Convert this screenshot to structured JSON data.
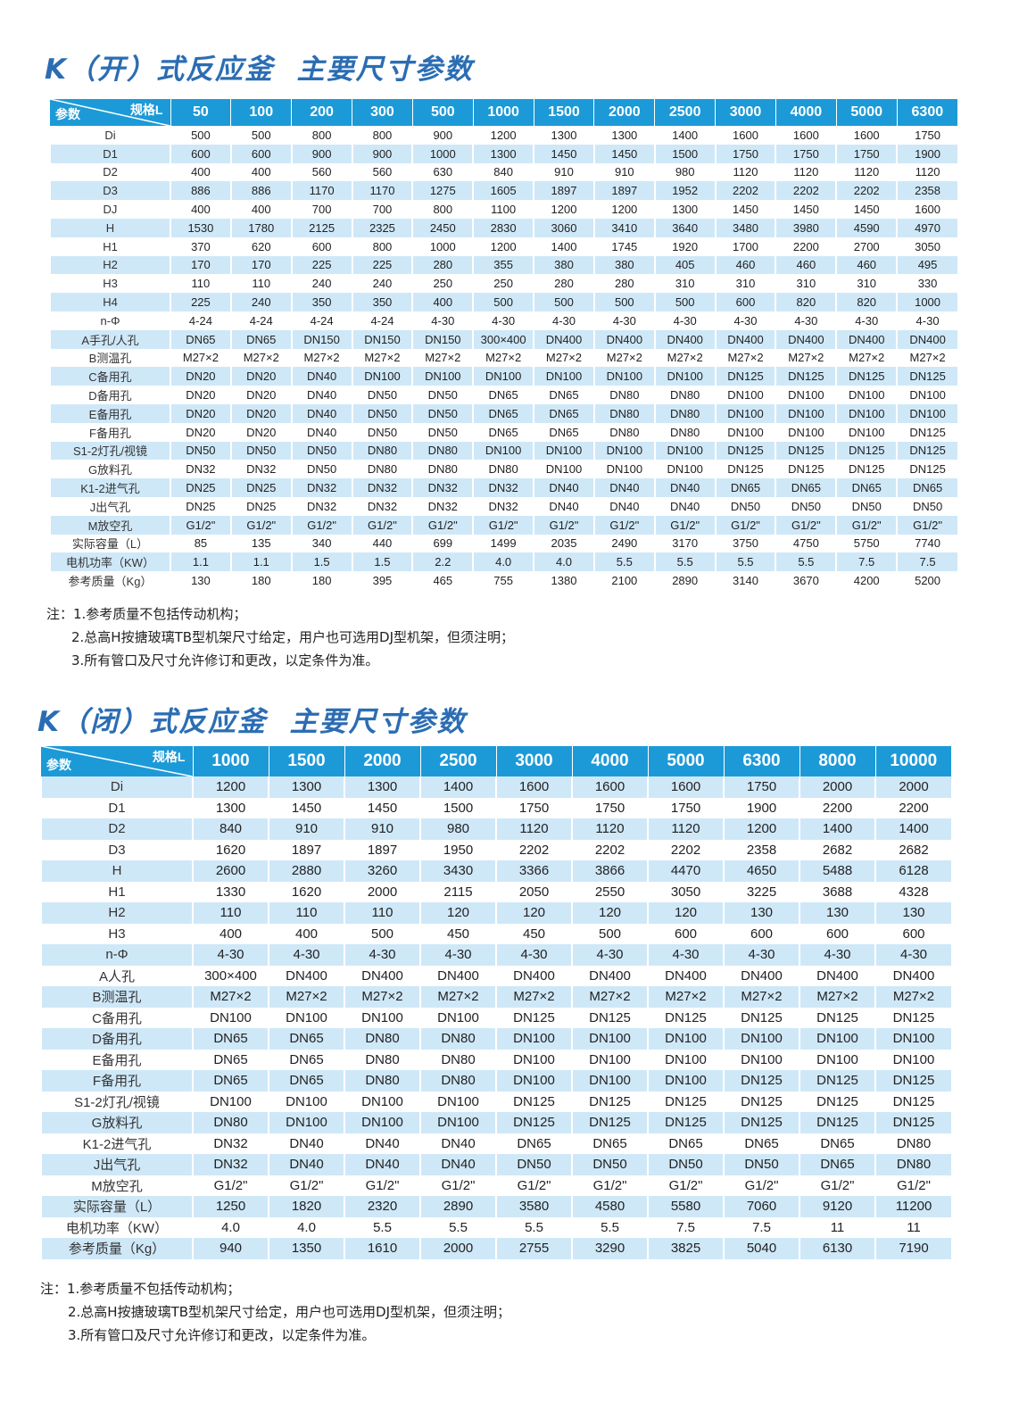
{
  "colors": {
    "title": "#2b6db3",
    "header": "#1c9ad8",
    "stripe": "#cfe8f8"
  },
  "section1": {
    "title": "K（开）式反应釜  主要尺寸参数",
    "corner": {
      "param": "参数",
      "spec": "规格L"
    },
    "columns": [
      "50",
      "100",
      "200",
      "300",
      "500",
      "1000",
      "1500",
      "2000",
      "2500",
      "3000",
      "4000",
      "5000",
      "6300"
    ],
    "rows": [
      [
        "Di",
        "500",
        "500",
        "800",
        "800",
        "900",
        "1200",
        "1300",
        "1300",
        "1400",
        "1600",
        "1600",
        "1600",
        "1750"
      ],
      [
        "D1",
        "600",
        "600",
        "900",
        "900",
        "1000",
        "1300",
        "1450",
        "1450",
        "1500",
        "1750",
        "1750",
        "1750",
        "1900"
      ],
      [
        "D2",
        "400",
        "400",
        "560",
        "560",
        "630",
        "840",
        "910",
        "910",
        "980",
        "1120",
        "1120",
        "1120",
        "1120"
      ],
      [
        "D3",
        "886",
        "886",
        "1170",
        "1170",
        "1275",
        "1605",
        "1897",
        "1897",
        "1952",
        "2202",
        "2202",
        "2202",
        "2358"
      ],
      [
        "DJ",
        "400",
        "400",
        "700",
        "700",
        "800",
        "1100",
        "1200",
        "1200",
        "1300",
        "1450",
        "1450",
        "1450",
        "1600"
      ],
      [
        "H",
        "1530",
        "1780",
        "2125",
        "2325",
        "2450",
        "2830",
        "3060",
        "3410",
        "3640",
        "3480",
        "3980",
        "4590",
        "4970"
      ],
      [
        "H1",
        "370",
        "620",
        "600",
        "800",
        "1000",
        "1200",
        "1400",
        "1745",
        "1920",
        "1700",
        "2200",
        "2700",
        "3050"
      ],
      [
        "H2",
        "170",
        "170",
        "225",
        "225",
        "280",
        "355",
        "380",
        "380",
        "405",
        "460",
        "460",
        "460",
        "495"
      ],
      [
        "H3",
        "110",
        "110",
        "240",
        "240",
        "250",
        "250",
        "280",
        "280",
        "310",
        "310",
        "310",
        "310",
        "330"
      ],
      [
        "H4",
        "225",
        "240",
        "350",
        "350",
        "400",
        "500",
        "500",
        "500",
        "500",
        "600",
        "820",
        "820",
        "1000"
      ],
      [
        "n-Φ",
        "4-24",
        "4-24",
        "4-24",
        "4-24",
        "4-30",
        "4-30",
        "4-30",
        "4-30",
        "4-30",
        "4-30",
        "4-30",
        "4-30",
        "4-30"
      ],
      [
        "A手孔/人孔",
        "DN65",
        "DN65",
        "DN150",
        "DN150",
        "DN150",
        "300×400",
        "DN400",
        "DN400",
        "DN400",
        "DN400",
        "DN400",
        "DN400",
        "DN400"
      ],
      [
        "B测温孔",
        "M27×2",
        "M27×2",
        "M27×2",
        "M27×2",
        "M27×2",
        "M27×2",
        "M27×2",
        "M27×2",
        "M27×2",
        "M27×2",
        "M27×2",
        "M27×2",
        "M27×2"
      ],
      [
        "C备用孔",
        "DN20",
        "DN20",
        "DN40",
        "DN100",
        "DN100",
        "DN100",
        "DN100",
        "DN100",
        "DN100",
        "DN125",
        "DN125",
        "DN125",
        "DN125"
      ],
      [
        "D备用孔",
        "DN20",
        "DN20",
        "DN40",
        "DN50",
        "DN50",
        "DN65",
        "DN65",
        "DN80",
        "DN80",
        "DN100",
        "DN100",
        "DN100",
        "DN100"
      ],
      [
        "E备用孔",
        "DN20",
        "DN20",
        "DN40",
        "DN50",
        "DN50",
        "DN65",
        "DN65",
        "DN80",
        "DN80",
        "DN100",
        "DN100",
        "DN100",
        "DN100"
      ],
      [
        "F备用孔",
        "DN20",
        "DN20",
        "DN40",
        "DN50",
        "DN50",
        "DN65",
        "DN65",
        "DN80",
        "DN80",
        "DN100",
        "DN100",
        "DN100",
        "DN125"
      ],
      [
        "S1-2灯孔/视镜",
        "DN50",
        "DN50",
        "DN50",
        "DN80",
        "DN80",
        "DN100",
        "DN100",
        "DN100",
        "DN100",
        "DN125",
        "DN125",
        "DN125",
        "DN125"
      ],
      [
        "G放料孔",
        "DN32",
        "DN32",
        "DN50",
        "DN80",
        "DN80",
        "DN80",
        "DN100",
        "DN100",
        "DN100",
        "DN125",
        "DN125",
        "DN125",
        "DN125"
      ],
      [
        "K1-2进气孔",
        "DN25",
        "DN25",
        "DN32",
        "DN32",
        "DN32",
        "DN32",
        "DN40",
        "DN40",
        "DN40",
        "DN65",
        "DN65",
        "DN65",
        "DN65"
      ],
      [
        "J出气孔",
        "DN25",
        "DN25",
        "DN32",
        "DN32",
        "DN32",
        "DN32",
        "DN40",
        "DN40",
        "DN40",
        "DN50",
        "DN50",
        "DN50",
        "DN50"
      ],
      [
        "M放空孔",
        "G1/2\"",
        "G1/2\"",
        "G1/2\"",
        "G1/2\"",
        "G1/2\"",
        "G1/2\"",
        "G1/2\"",
        "G1/2\"",
        "G1/2\"",
        "G1/2\"",
        "G1/2\"",
        "G1/2\"",
        "G1/2\""
      ],
      [
        "实际容量（L）",
        "85",
        "135",
        "340",
        "440",
        "699",
        "1499",
        "2035",
        "2490",
        "3170",
        "3750",
        "4750",
        "5750",
        "7740"
      ],
      [
        "电机功率（KW）",
        "1.1",
        "1.1",
        "1.5",
        "1.5",
        "2.2",
        "4.0",
        "4.0",
        "5.5",
        "5.5",
        "5.5",
        "5.5",
        "7.5",
        "7.5"
      ],
      [
        "参考质量（Kg）",
        "130",
        "180",
        "180",
        "395",
        "465",
        "755",
        "1380",
        "2100",
        "2890",
        "3140",
        "3670",
        "4200",
        "5200"
      ]
    ],
    "notes": [
      "注：1.参考质量不包括传动机构；",
      "2.总高H按搪玻璃TB型机架尺寸给定，用户也可选用DJ型机架，但须注明；",
      "3.所有管口及尺寸允许修订和更改，以定条件为准。"
    ]
  },
  "section2": {
    "title": "K（闭）式反应釜  主要尺寸参数",
    "corner": {
      "param": "参数",
      "spec": "规格L"
    },
    "columns": [
      "1000",
      "1500",
      "2000",
      "2500",
      "3000",
      "4000",
      "5000",
      "6300",
      "8000",
      "10000"
    ],
    "rows": [
      [
        "Di",
        "1200",
        "1300",
        "1300",
        "1400",
        "1600",
        "1600",
        "1600",
        "1750",
        "2000",
        "2000"
      ],
      [
        "D1",
        "1300",
        "1450",
        "1450",
        "1500",
        "1750",
        "1750",
        "1750",
        "1900",
        "2200",
        "2200"
      ],
      [
        "D2",
        "840",
        "910",
        "910",
        "980",
        "1120",
        "1120",
        "1120",
        "1200",
        "1400",
        "1400"
      ],
      [
        "D3",
        "1620",
        "1897",
        "1897",
        "1950",
        "2202",
        "2202",
        "2202",
        "2358",
        "2682",
        "2682"
      ],
      [
        "H",
        "2600",
        "2880",
        "3260",
        "3430",
        "3366",
        "3866",
        "4470",
        "4650",
        "5488",
        "6128"
      ],
      [
        "H1",
        "1330",
        "1620",
        "2000",
        "2115",
        "2050",
        "2550",
        "3050",
        "3225",
        "3688",
        "4328"
      ],
      [
        "H2",
        "110",
        "110",
        "110",
        "120",
        "120",
        "120",
        "120",
        "130",
        "130",
        "130"
      ],
      [
        "H3",
        "400",
        "400",
        "500",
        "450",
        "450",
        "500",
        "600",
        "600",
        "600",
        "600"
      ],
      [
        "n-Φ",
        "4-30",
        "4-30",
        "4-30",
        "4-30",
        "4-30",
        "4-30",
        "4-30",
        "4-30",
        "4-30",
        "4-30"
      ],
      [
        "A人孔",
        "300×400",
        "DN400",
        "DN400",
        "DN400",
        "DN400",
        "DN400",
        "DN400",
        "DN400",
        "DN400",
        "DN400"
      ],
      [
        "B测温孔",
        "M27×2",
        "M27×2",
        "M27×2",
        "M27×2",
        "M27×2",
        "M27×2",
        "M27×2",
        "M27×2",
        "M27×2",
        "M27×2"
      ],
      [
        "C备用孔",
        "DN100",
        "DN100",
        "DN100",
        "DN100",
        "DN125",
        "DN125",
        "DN125",
        "DN125",
        "DN125",
        "DN125"
      ],
      [
        "D备用孔",
        "DN65",
        "DN65",
        "DN80",
        "DN80",
        "DN100",
        "DN100",
        "DN100",
        "DN100",
        "DN100",
        "DN100"
      ],
      [
        "E备用孔",
        "DN65",
        "DN65",
        "DN80",
        "DN80",
        "DN100",
        "DN100",
        "DN100",
        "DN100",
        "DN100",
        "DN100"
      ],
      [
        "F备用孔",
        "DN65",
        "DN65",
        "DN80",
        "DN80",
        "DN100",
        "DN100",
        "DN100",
        "DN125",
        "DN125",
        "DN125"
      ],
      [
        "S1-2灯孔/视镜",
        "DN100",
        "DN100",
        "DN100",
        "DN100",
        "DN125",
        "DN125",
        "DN125",
        "DN125",
        "DN125",
        "DN125"
      ],
      [
        "G放料孔",
        "DN80",
        "DN100",
        "DN100",
        "DN100",
        "DN125",
        "DN125",
        "DN125",
        "DN125",
        "DN125",
        "DN125"
      ],
      [
        "K1-2进气孔",
        "DN32",
        "DN40",
        "DN40",
        "DN40",
        "DN65",
        "DN65",
        "DN65",
        "DN65",
        "DN65",
        "DN80"
      ],
      [
        "J出气孔",
        "DN32",
        "DN40",
        "DN40",
        "DN40",
        "DN50",
        "DN50",
        "DN50",
        "DN50",
        "DN65",
        "DN80"
      ],
      [
        "M放空孔",
        "G1/2\"",
        "G1/2\"",
        "G1/2\"",
        "G1/2\"",
        "G1/2\"",
        "G1/2\"",
        "G1/2\"",
        "G1/2\"",
        "G1/2\"",
        "G1/2\""
      ],
      [
        "实际容量（L）",
        "1250",
        "1820",
        "2320",
        "2890",
        "3580",
        "4580",
        "5580",
        "7060",
        "9120",
        "11200"
      ],
      [
        "电机功率（KW）",
        "4.0",
        "4.0",
        "5.5",
        "5.5",
        "5.5",
        "5.5",
        "7.5",
        "7.5",
        "11",
        "11"
      ],
      [
        "参考质量（Kg）",
        "940",
        "1350",
        "1610",
        "2000",
        "2755",
        "3290",
        "3825",
        "5040",
        "6130",
        "7190"
      ]
    ],
    "notes": [
      "注：1.参考质量不包括传动机构；",
      "2.总高H按搪玻璃TB型机架尺寸给定，用户也可选用DJ型机架，但须注明；",
      "3.所有管口及尺寸允许修订和更改，以定条件为准。"
    ]
  }
}
